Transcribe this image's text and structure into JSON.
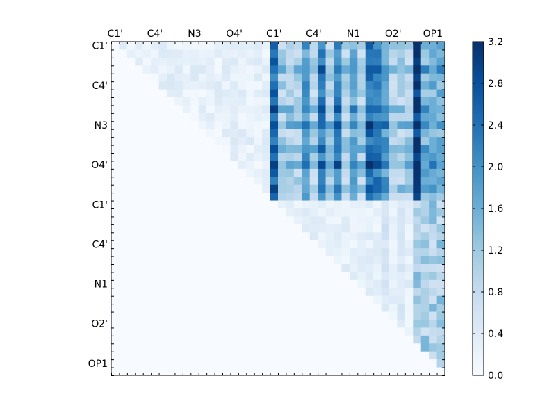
{
  "chart_data": {
    "type": "heatmap",
    "title": "",
    "xlabel": "",
    "ylabel": "",
    "n_rows": 42,
    "n_cols": 42,
    "x_tick_labels": [
      "C1'",
      "C4'",
      "N3",
      "O4'",
      "C1'",
      "C4'",
      "N1",
      "O2'",
      "OP1"
    ],
    "x_tick_indices": [
      0,
      5,
      10,
      15,
      20,
      25,
      30,
      35,
      40
    ],
    "y_tick_labels": [
      "C1'",
      "C4'",
      "N3",
      "O4'",
      "C1'",
      "C4'",
      "N1",
      "O2'",
      "OP1"
    ],
    "y_tick_indices": [
      0,
      5,
      10,
      15,
      20,
      25,
      30,
      35,
      40
    ],
    "colorbar": {
      "range": [
        0.0,
        3.2
      ],
      "ticks": [
        "0.0",
        "0.4",
        "0.8",
        "1.2",
        "1.6",
        "2.0",
        "2.4",
        "2.8",
        "3.2"
      ],
      "colormap": [
        "#f7fbff",
        "#deebf7",
        "#c6dbef",
        "#9ecae1",
        "#6baed6",
        "#4292c6",
        "#2171b5",
        "#08519c",
        "#08306b"
      ]
    },
    "grid": false,
    "values_description_rows": [
      "Upper triangle only: cells below the diagonal are 0.0",
      "Rows 0-19 vs cols 0-19: faint values 0.0-0.5",
      "Rows 0-19 vs cols 20-41: strong values 0.5-3.2, with high columns near 20, 26, 28, 32-33, 38",
      "Rows 20-41 vs cols 20-41: weak values 0.0-1.6, increasing toward the right-most columns"
    ]
  }
}
